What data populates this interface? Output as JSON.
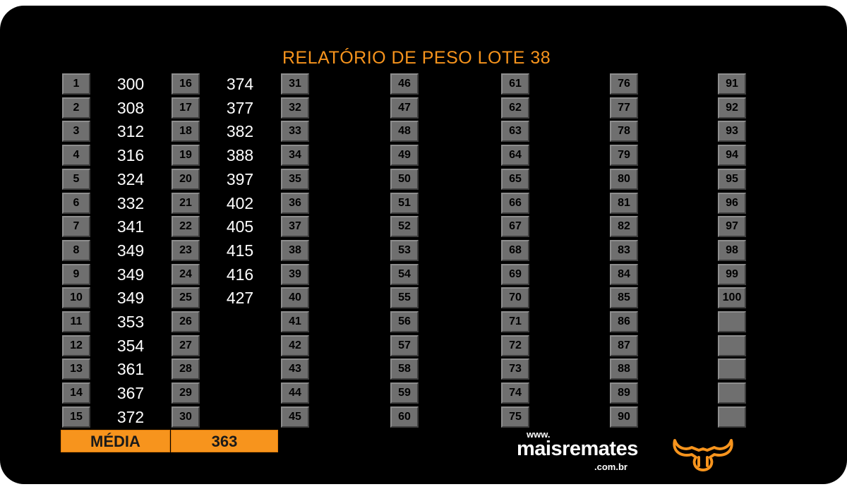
{
  "title": "RELATÓRIO DE PESO LOTE  38",
  "columns": [
    {
      "numbers": [
        "1",
        "2",
        "3",
        "4",
        "5",
        "6",
        "7",
        "8",
        "9",
        "10",
        "11",
        "12",
        "13",
        "14",
        "15"
      ],
      "weights": [
        "300",
        "308",
        "312",
        "316",
        "324",
        "332",
        "341",
        "349",
        "349",
        "349",
        "353",
        "354",
        "361",
        "367",
        "372"
      ]
    },
    {
      "numbers": [
        "16",
        "17",
        "18",
        "19",
        "20",
        "21",
        "22",
        "23",
        "24",
        "25",
        "26",
        "27",
        "28",
        "29",
        "30"
      ],
      "weights": [
        "374",
        "377",
        "382",
        "388",
        "397",
        "402",
        "405",
        "415",
        "416",
        "427",
        "",
        "",
        "",
        "",
        ""
      ]
    },
    {
      "numbers": [
        "31",
        "32",
        "33",
        "34",
        "35",
        "36",
        "37",
        "38",
        "39",
        "40",
        "41",
        "42",
        "43",
        "44",
        "45"
      ],
      "weights": []
    },
    {
      "numbers": [
        "46",
        "47",
        "48",
        "49",
        "50",
        "51",
        "52",
        "53",
        "54",
        "55",
        "56",
        "57",
        "58",
        "59",
        "60"
      ],
      "weights": []
    },
    {
      "numbers": [
        "61",
        "62",
        "63",
        "64",
        "65",
        "66",
        "67",
        "68",
        "69",
        "70",
        "71",
        "72",
        "73",
        "74",
        "75"
      ],
      "weights": []
    },
    {
      "numbers": [
        "76",
        "77",
        "78",
        "79",
        "80",
        "81",
        "82",
        "83",
        "84",
        "85",
        "86",
        "87",
        "88",
        "89",
        "90"
      ],
      "weights": []
    },
    {
      "numbers": [
        "91",
        "92",
        "93",
        "94",
        "95",
        "96",
        "97",
        "98",
        "99",
        "100",
        "",
        "",
        "",
        "",
        ""
      ],
      "weights": []
    }
  ],
  "footer": {
    "media_label": "MÉDIA",
    "media_value": "363"
  },
  "logo": {
    "www": "www.",
    "name": "maisremates",
    "domain": ".com.br"
  },
  "colors": {
    "accent": "#f7941d",
    "background": "#000000",
    "cell": "#6f6f6f"
  }
}
